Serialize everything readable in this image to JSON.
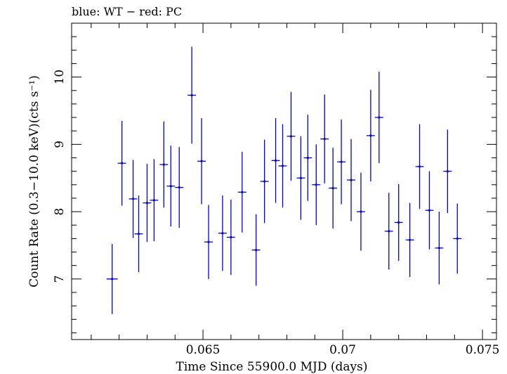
{
  "chart_data": {
    "type": "scatter",
    "title": "blue: WT − red: PC",
    "xlabel": "Time Since 55900.0 MJD (days)",
    "ylabel": "Count Rate (0.3−10.0 keV)(cts s⁻¹)",
    "xlim": [
      0.0603,
      0.0755
    ],
    "ylim": [
      6.1,
      10.8
    ],
    "xticks": [
      0.065,
      0.07,
      0.075
    ],
    "xtick_labels": [
      "0.065",
      "0.07",
      "0.075"
    ],
    "yticks": [
      7,
      8,
      9,
      10
    ],
    "ytick_labels": [
      "7",
      "8",
      "9",
      "10"
    ],
    "grid": false,
    "series": [
      {
        "name": "WT",
        "color": "#0000e6",
        "points": [
          {
            "x": 0.06175,
            "xerr": 0.0002,
            "y": 7.0,
            "yerr": 0.52
          },
          {
            "x": 0.0621,
            "xerr": 0.00015,
            "y": 8.72,
            "yerr": 0.63
          },
          {
            "x": 0.0625,
            "xerr": 0.00015,
            "y": 8.19,
            "yerr": 0.58
          },
          {
            "x": 0.0627,
            "xerr": 0.00015,
            "y": 7.67,
            "yerr": 0.57
          },
          {
            "x": 0.063,
            "xerr": 0.00015,
            "y": 8.13,
            "yerr": 0.58
          },
          {
            "x": 0.06325,
            "xerr": 0.00015,
            "y": 8.17,
            "yerr": 0.61
          },
          {
            "x": 0.0636,
            "xerr": 0.00015,
            "y": 8.7,
            "yerr": 0.64
          },
          {
            "x": 0.06385,
            "xerr": 0.00015,
            "y": 8.38,
            "yerr": 0.6
          },
          {
            "x": 0.06415,
            "xerr": 0.00015,
            "y": 8.36,
            "yerr": 0.6
          },
          {
            "x": 0.0646,
            "xerr": 0.00015,
            "y": 9.73,
            "yerr": 0.72
          },
          {
            "x": 0.06495,
            "xerr": 0.00015,
            "y": 8.75,
            "yerr": 0.64
          },
          {
            "x": 0.0652,
            "xerr": 0.00015,
            "y": 7.55,
            "yerr": 0.55
          },
          {
            "x": 0.0657,
            "xerr": 0.00015,
            "y": 7.68,
            "yerr": 0.56
          },
          {
            "x": 0.066,
            "xerr": 0.00015,
            "y": 7.62,
            "yerr": 0.56
          },
          {
            "x": 0.0664,
            "xerr": 0.00015,
            "y": 8.29,
            "yerr": 0.6
          },
          {
            "x": 0.0669,
            "xerr": 0.00015,
            "y": 7.43,
            "yerr": 0.53
          },
          {
            "x": 0.0672,
            "xerr": 0.00015,
            "y": 8.45,
            "yerr": 0.62
          },
          {
            "x": 0.0676,
            "xerr": 0.00015,
            "y": 8.76,
            "yerr": 0.63
          },
          {
            "x": 0.06785,
            "xerr": 0.00015,
            "y": 8.68,
            "yerr": 0.62
          },
          {
            "x": 0.06815,
            "xerr": 0.00015,
            "y": 9.12,
            "yerr": 0.66
          },
          {
            "x": 0.0685,
            "xerr": 0.00015,
            "y": 8.5,
            "yerr": 0.62
          },
          {
            "x": 0.06875,
            "xerr": 0.00015,
            "y": 8.8,
            "yerr": 0.64
          },
          {
            "x": 0.06905,
            "xerr": 0.00015,
            "y": 8.4,
            "yerr": 0.6
          },
          {
            "x": 0.06935,
            "xerr": 0.00015,
            "y": 9.08,
            "yerr": 0.66
          },
          {
            "x": 0.06965,
            "xerr": 0.00015,
            "y": 8.35,
            "yerr": 0.6
          },
          {
            "x": 0.06995,
            "xerr": 0.00015,
            "y": 8.74,
            "yerr": 0.63
          },
          {
            "x": 0.0703,
            "xerr": 0.00015,
            "y": 8.47,
            "yerr": 0.61
          },
          {
            "x": 0.07065,
            "xerr": 0.00015,
            "y": 8.0,
            "yerr": 0.58
          },
          {
            "x": 0.071,
            "xerr": 0.00015,
            "y": 9.13,
            "yerr": 0.68
          },
          {
            "x": 0.0713,
            "xerr": 0.00015,
            "y": 9.4,
            "yerr": 0.68
          },
          {
            "x": 0.07165,
            "xerr": 0.00015,
            "y": 7.71,
            "yerr": 0.57
          },
          {
            "x": 0.072,
            "xerr": 0.00015,
            "y": 7.84,
            "yerr": 0.57
          },
          {
            "x": 0.0724,
            "xerr": 0.00015,
            "y": 7.58,
            "yerr": 0.55
          },
          {
            "x": 0.07275,
            "xerr": 0.00015,
            "y": 8.67,
            "yerr": 0.63
          },
          {
            "x": 0.0731,
            "xerr": 0.00015,
            "y": 8.02,
            "yerr": 0.58
          },
          {
            "x": 0.07345,
            "xerr": 0.00015,
            "y": 7.46,
            "yerr": 0.54
          },
          {
            "x": 0.07375,
            "xerr": 0.00015,
            "y": 8.6,
            "yerr": 0.62
          },
          {
            "x": 0.0741,
            "xerr": 0.00015,
            "y": 7.6,
            "yerr": 0.52
          }
        ]
      }
    ]
  }
}
